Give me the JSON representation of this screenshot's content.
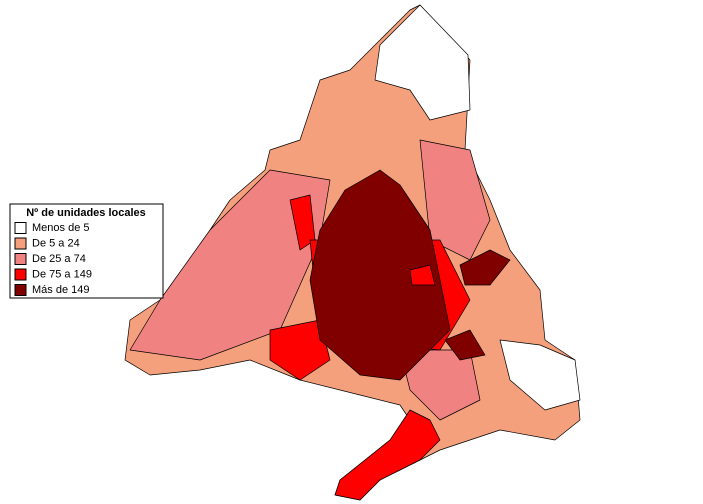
{
  "legend": {
    "title": "Nº de unidades locales",
    "items": [
      {
        "label": "Menos de 5",
        "color": "#ffffff"
      },
      {
        "label": "De 5 a 24",
        "color": "#f5a07c"
      },
      {
        "label": "De 25 a 74",
        "color": "#f08282"
      },
      {
        "label": "De 75 a 149",
        "color": "#ff0000"
      },
      {
        "label": "Más de 149",
        "color": "#800000"
      }
    ]
  }
}
